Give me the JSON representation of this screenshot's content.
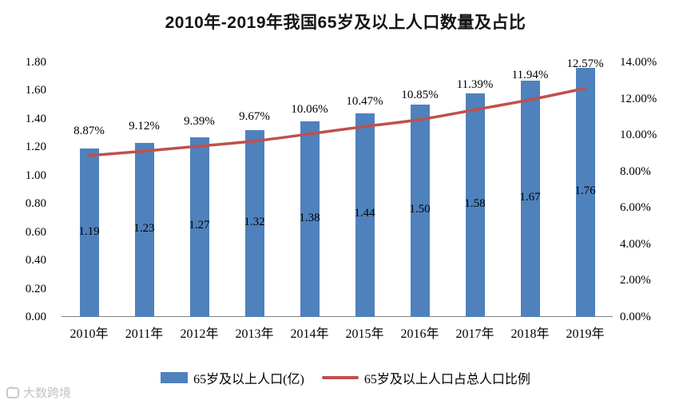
{
  "chart_data": {
    "type": "bar",
    "title": "2010年-2019年我国65岁及以上人口数量及占比",
    "categories": [
      "2010年",
      "2011年",
      "2012年",
      "2013年",
      "2014年",
      "2015年",
      "2016年",
      "2017年",
      "2018年",
      "2019年"
    ],
    "series": [
      {
        "name": "65岁及以上人口(亿)",
        "type": "bar",
        "axis": "left",
        "color": "#4f81bd",
        "values": [
          1.19,
          1.23,
          1.27,
          1.32,
          1.38,
          1.44,
          1.5,
          1.58,
          1.67,
          1.76
        ],
        "labels": [
          "1.19",
          "1.23",
          "1.27",
          "1.32",
          "1.38",
          "1.44",
          "1.50",
          "1.58",
          "1.67",
          "1.76"
        ]
      },
      {
        "name": "65岁及以上人口占总人口比例",
        "type": "line",
        "axis": "right",
        "color": "#c0504d",
        "values": [
          8.87,
          9.12,
          9.39,
          9.67,
          10.06,
          10.47,
          10.85,
          11.39,
          11.94,
          12.57
        ],
        "labels": [
          "8.87%",
          "9.12%",
          "9.39%",
          "9.67%",
          "10.06%",
          "10.47%",
          "10.85%",
          "11.39%",
          "11.94%",
          "12.57%"
        ]
      }
    ],
    "left_axis": {
      "min": 0,
      "max": 1.8,
      "step": 0.2,
      "tick_labels": [
        "0.00",
        "0.20",
        "0.40",
        "0.60",
        "0.80",
        "1.00",
        "1.20",
        "1.40",
        "1.60",
        "1.80"
      ]
    },
    "right_axis": {
      "min": 0,
      "max": 14,
      "step": 2,
      "tick_labels": [
        "0.00%",
        "2.00%",
        "4.00%",
        "6.00%",
        "8.00%",
        "10.00%",
        "12.00%",
        "14.00%"
      ]
    },
    "grid": false,
    "legend_position": "bottom"
  },
  "watermark": {
    "text": "大数跨境"
  }
}
